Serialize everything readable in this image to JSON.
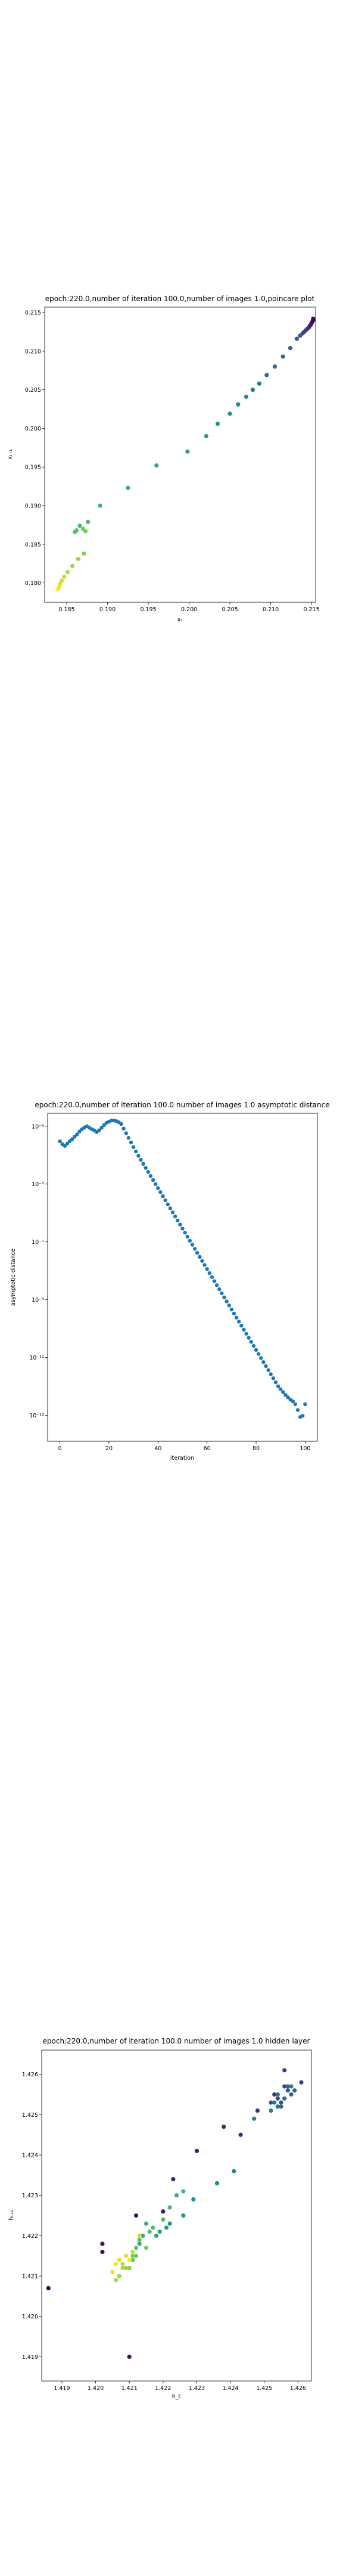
{
  "chart_data": [
    {
      "type": "scatter",
      "title": "epoch:220.0,number of iteration 100.0,number of images 1.0,poincare plot",
      "xlabel": "xₜ",
      "ylabel": "xₜ₊₁",
      "xlim": [
        0.1823,
        0.2155
      ],
      "ylim": [
        0.1775,
        0.2157
      ],
      "xticks": [
        0.185,
        0.19,
        0.195,
        0.2,
        0.205,
        0.21,
        0.215
      ],
      "xtick_labels": [
        "0.185",
        "0.190",
        "0.195",
        "0.200",
        "0.205",
        "0.210",
        "0.215"
      ],
      "yticks": [
        0.18,
        0.185,
        0.19,
        0.195,
        0.2,
        0.205,
        0.21,
        0.215
      ],
      "ytick_labels": [
        "0.180",
        "0.185",
        "0.190",
        "0.195",
        "0.200",
        "0.205",
        "0.210",
        "0.215"
      ],
      "colormap": "viridis",
      "points": [
        [
          0.1839,
          0.1792
        ],
        [
          0.1841,
          0.1795
        ],
        [
          0.1842,
          0.1799
        ],
        [
          0.1844,
          0.1803
        ],
        [
          0.1847,
          0.1808
        ],
        [
          0.1851,
          0.1814
        ],
        [
          0.1857,
          0.1822
        ],
        [
          0.1864,
          0.1831
        ],
        [
          0.1871,
          0.1838
        ],
        [
          0.1873,
          0.1867
        ],
        [
          0.187,
          0.187
        ],
        [
          0.186,
          0.1866
        ],
        [
          0.1862,
          0.1868
        ],
        [
          0.1866,
          0.1874
        ],
        [
          0.1876,
          0.1879
        ],
        [
          0.1891,
          0.19
        ],
        [
          0.1925,
          0.1923
        ],
        [
          0.196,
          0.1952
        ],
        [
          0.1998,
          0.197
        ],
        [
          0.2021,
          0.199
        ],
        [
          0.2035,
          0.2006
        ],
        [
          0.205,
          0.2019
        ],
        [
          0.206,
          0.2031
        ],
        [
          0.207,
          0.2041
        ],
        [
          0.2078,
          0.205
        ],
        [
          0.2086,
          0.2058
        ],
        [
          0.2095,
          0.2069
        ],
        [
          0.2105,
          0.208
        ],
        [
          0.2115,
          0.2093
        ],
        [
          0.2124,
          0.2104
        ],
        [
          0.2132,
          0.2116
        ],
        [
          0.2136,
          0.212
        ],
        [
          0.2139,
          0.2123
        ],
        [
          0.2141,
          0.2125
        ],
        [
          0.2143,
          0.2127
        ],
        [
          0.2145,
          0.2129
        ],
        [
          0.2147,
          0.2131
        ],
        [
          0.2148,
          0.2133
        ],
        [
          0.2149,
          0.2134
        ],
        [
          0.215,
          0.2136
        ],
        [
          0.2151,
          0.2138
        ],
        [
          0.2152,
          0.214
        ],
        [
          0.2152,
          0.2142
        ]
      ]
    },
    {
      "type": "scatter",
      "title": "epoch:220.0,number of iteration 100.0  number of images 1.0 asymptotic distance",
      "xlabel": "iteration",
      "ylabel": "asymptotic distance",
      "yscale": "log",
      "xlim": [
        -5,
        105
      ],
      "ylim_log10": [
        -13.9,
        -2.55
      ],
      "xticks": [
        0,
        20,
        40,
        60,
        80,
        100
      ],
      "xtick_labels": [
        "0",
        "20",
        "40",
        "60",
        "80",
        "100"
      ],
      "yticks_log10": [
        -3,
        -5,
        -7,
        -9,
        -11,
        -13
      ],
      "ytick_labels": [
        "10⁻³",
        "10⁻⁵",
        "10⁻⁷",
        "10⁻⁹",
        "10⁻¹¹",
        "10⁻¹³"
      ],
      "color": "#1f77b4",
      "series_log10": [
        -3.52,
        -3.62,
        -3.68,
        -3.6,
        -3.52,
        -3.45,
        -3.36,
        -3.28,
        -3.18,
        -3.1,
        -3.04,
        -3.0,
        -3.05,
        -3.1,
        -3.14,
        -3.2,
        -3.14,
        -3.05,
        -2.96,
        -2.88,
        -2.84,
        -2.8,
        -2.8,
        -2.82,
        -2.86,
        -2.92,
        -3.08,
        -3.24,
        -3.4,
        -3.56,
        -3.72,
        -3.87,
        -4.02,
        -4.16,
        -4.3,
        -4.44,
        -4.58,
        -4.72,
        -4.86,
        -5.0,
        -5.14,
        -5.28,
        -5.42,
        -5.56,
        -5.7,
        -5.84,
        -5.98,
        -6.12,
        -6.26,
        -6.4,
        -6.54,
        -6.68,
        -6.82,
        -6.96,
        -7.1,
        -7.24,
        -7.38,
        -7.52,
        -7.66,
        -7.8,
        -7.94,
        -8.08,
        -8.22,
        -8.36,
        -8.5,
        -8.64,
        -8.78,
        -8.92,
        -9.06,
        -9.2,
        -9.34,
        -9.48,
        -9.62,
        -9.76,
        -9.9,
        -10.04,
        -10.18,
        -10.32,
        -10.46,
        -10.6,
        -10.74,
        -10.88,
        -11.02,
        -11.16,
        -11.3,
        -11.44,
        -11.58,
        -11.72,
        -11.86,
        -12.0,
        -12.1,
        -12.2,
        -12.3,
        -12.38,
        -12.46,
        -12.52,
        -12.62,
        -12.82,
        -13.06,
        -13.02,
        -12.62
      ]
    },
    {
      "type": "scatter",
      "title": "epoch:220.0,number of iteration 100.0  number of images 1.0 hidden layer",
      "xlabel": "h_t",
      "ylabel": "hₜ₊₁",
      "xlim": [
        1.4184,
        1.4264
      ],
      "ylim": [
        1.4184,
        1.4266
      ],
      "xticks": [
        1.419,
        1.42,
        1.421,
        1.422,
        1.423,
        1.424,
        1.425,
        1.426
      ],
      "xtick_labels": [
        "1.419",
        "1.420",
        "1.421",
        "1.422",
        "1.423",
        "1.424",
        "1.425",
        "1.426"
      ],
      "yticks": [
        1.419,
        1.42,
        1.421,
        1.422,
        1.423,
        1.424,
        1.425,
        1.426
      ],
      "ytick_labels": [
        "1.419",
        "1.420",
        "1.421",
        "1.422",
        "1.423",
        "1.424",
        "1.425",
        "1.426"
      ],
      "colormap": "viridis",
      "points": [
        [
          1.4186,
          1.4207
        ],
        [
          1.421,
          1.419
        ],
        [
          1.4202,
          1.4216
        ],
        [
          1.4202,
          1.4218
        ],
        [
          1.4212,
          1.4225
        ],
        [
          1.422,
          1.4226
        ],
        [
          1.4223,
          1.4234
        ],
        [
          1.423,
          1.4241
        ],
        [
          1.4238,
          1.4247
        ],
        [
          1.4243,
          1.4245
        ],
        [
          1.4248,
          1.4251
        ],
        [
          1.4253,
          1.4255
        ],
        [
          1.4256,
          1.4261
        ],
        [
          1.4261,
          1.4258
        ],
        [
          1.4256,
          1.4257
        ],
        [
          1.4252,
          1.4253
        ],
        [
          1.4254,
          1.4254
        ],
        [
          1.4255,
          1.4253
        ],
        [
          1.4257,
          1.4256
        ],
        [
          1.4258,
          1.4255
        ],
        [
          1.4259,
          1.4256
        ],
        [
          1.4257,
          1.4257
        ],
        [
          1.4256,
          1.4254
        ],
        [
          1.4255,
          1.4252
        ],
        [
          1.4254,
          1.4252
        ],
        [
          1.4253,
          1.4253
        ],
        [
          1.4254,
          1.4255
        ],
        [
          1.4252,
          1.4251
        ],
        [
          1.4258,
          1.4257
        ],
        [
          1.4247,
          1.4249
        ],
        [
          1.4241,
          1.4236
        ],
        [
          1.4236,
          1.4233
        ],
        [
          1.4229,
          1.4229
        ],
        [
          1.4226,
          1.4225
        ],
        [
          1.4222,
          1.4223
        ],
        [
          1.4221,
          1.4222
        ],
        [
          1.4219,
          1.4221
        ],
        [
          1.4218,
          1.422
        ],
        [
          1.4214,
          1.422
        ],
        [
          1.4213,
          1.4218
        ],
        [
          1.4215,
          1.4223
        ],
        [
          1.4224,
          1.423
        ],
        [
          1.4226,
          1.4231
        ],
        [
          1.4222,
          1.4227
        ],
        [
          1.422,
          1.4224
        ],
        [
          1.4217,
          1.4222
        ],
        [
          1.4216,
          1.4221
        ],
        [
          1.4213,
          1.4219
        ],
        [
          1.4212,
          1.4217
        ],
        [
          1.4211,
          1.4214
        ],
        [
          1.4212,
          1.4215
        ],
        [
          1.4215,
          1.4217
        ],
        [
          1.4211,
          1.4215
        ],
        [
          1.421,
          1.4212
        ],
        [
          1.4209,
          1.4212
        ],
        [
          1.4207,
          1.421
        ],
        [
          1.4206,
          1.4209
        ],
        [
          1.4208,
          1.4212
        ],
        [
          1.4208,
          1.4213
        ],
        [
          1.4211,
          1.4216
        ],
        [
          1.4213,
          1.422
        ],
        [
          1.4209,
          1.4215
        ],
        [
          1.4207,
          1.4214
        ],
        [
          1.4205,
          1.4211
        ],
        [
          1.4206,
          1.4213
        ],
        [
          1.421,
          1.4214
        ]
      ]
    }
  ]
}
